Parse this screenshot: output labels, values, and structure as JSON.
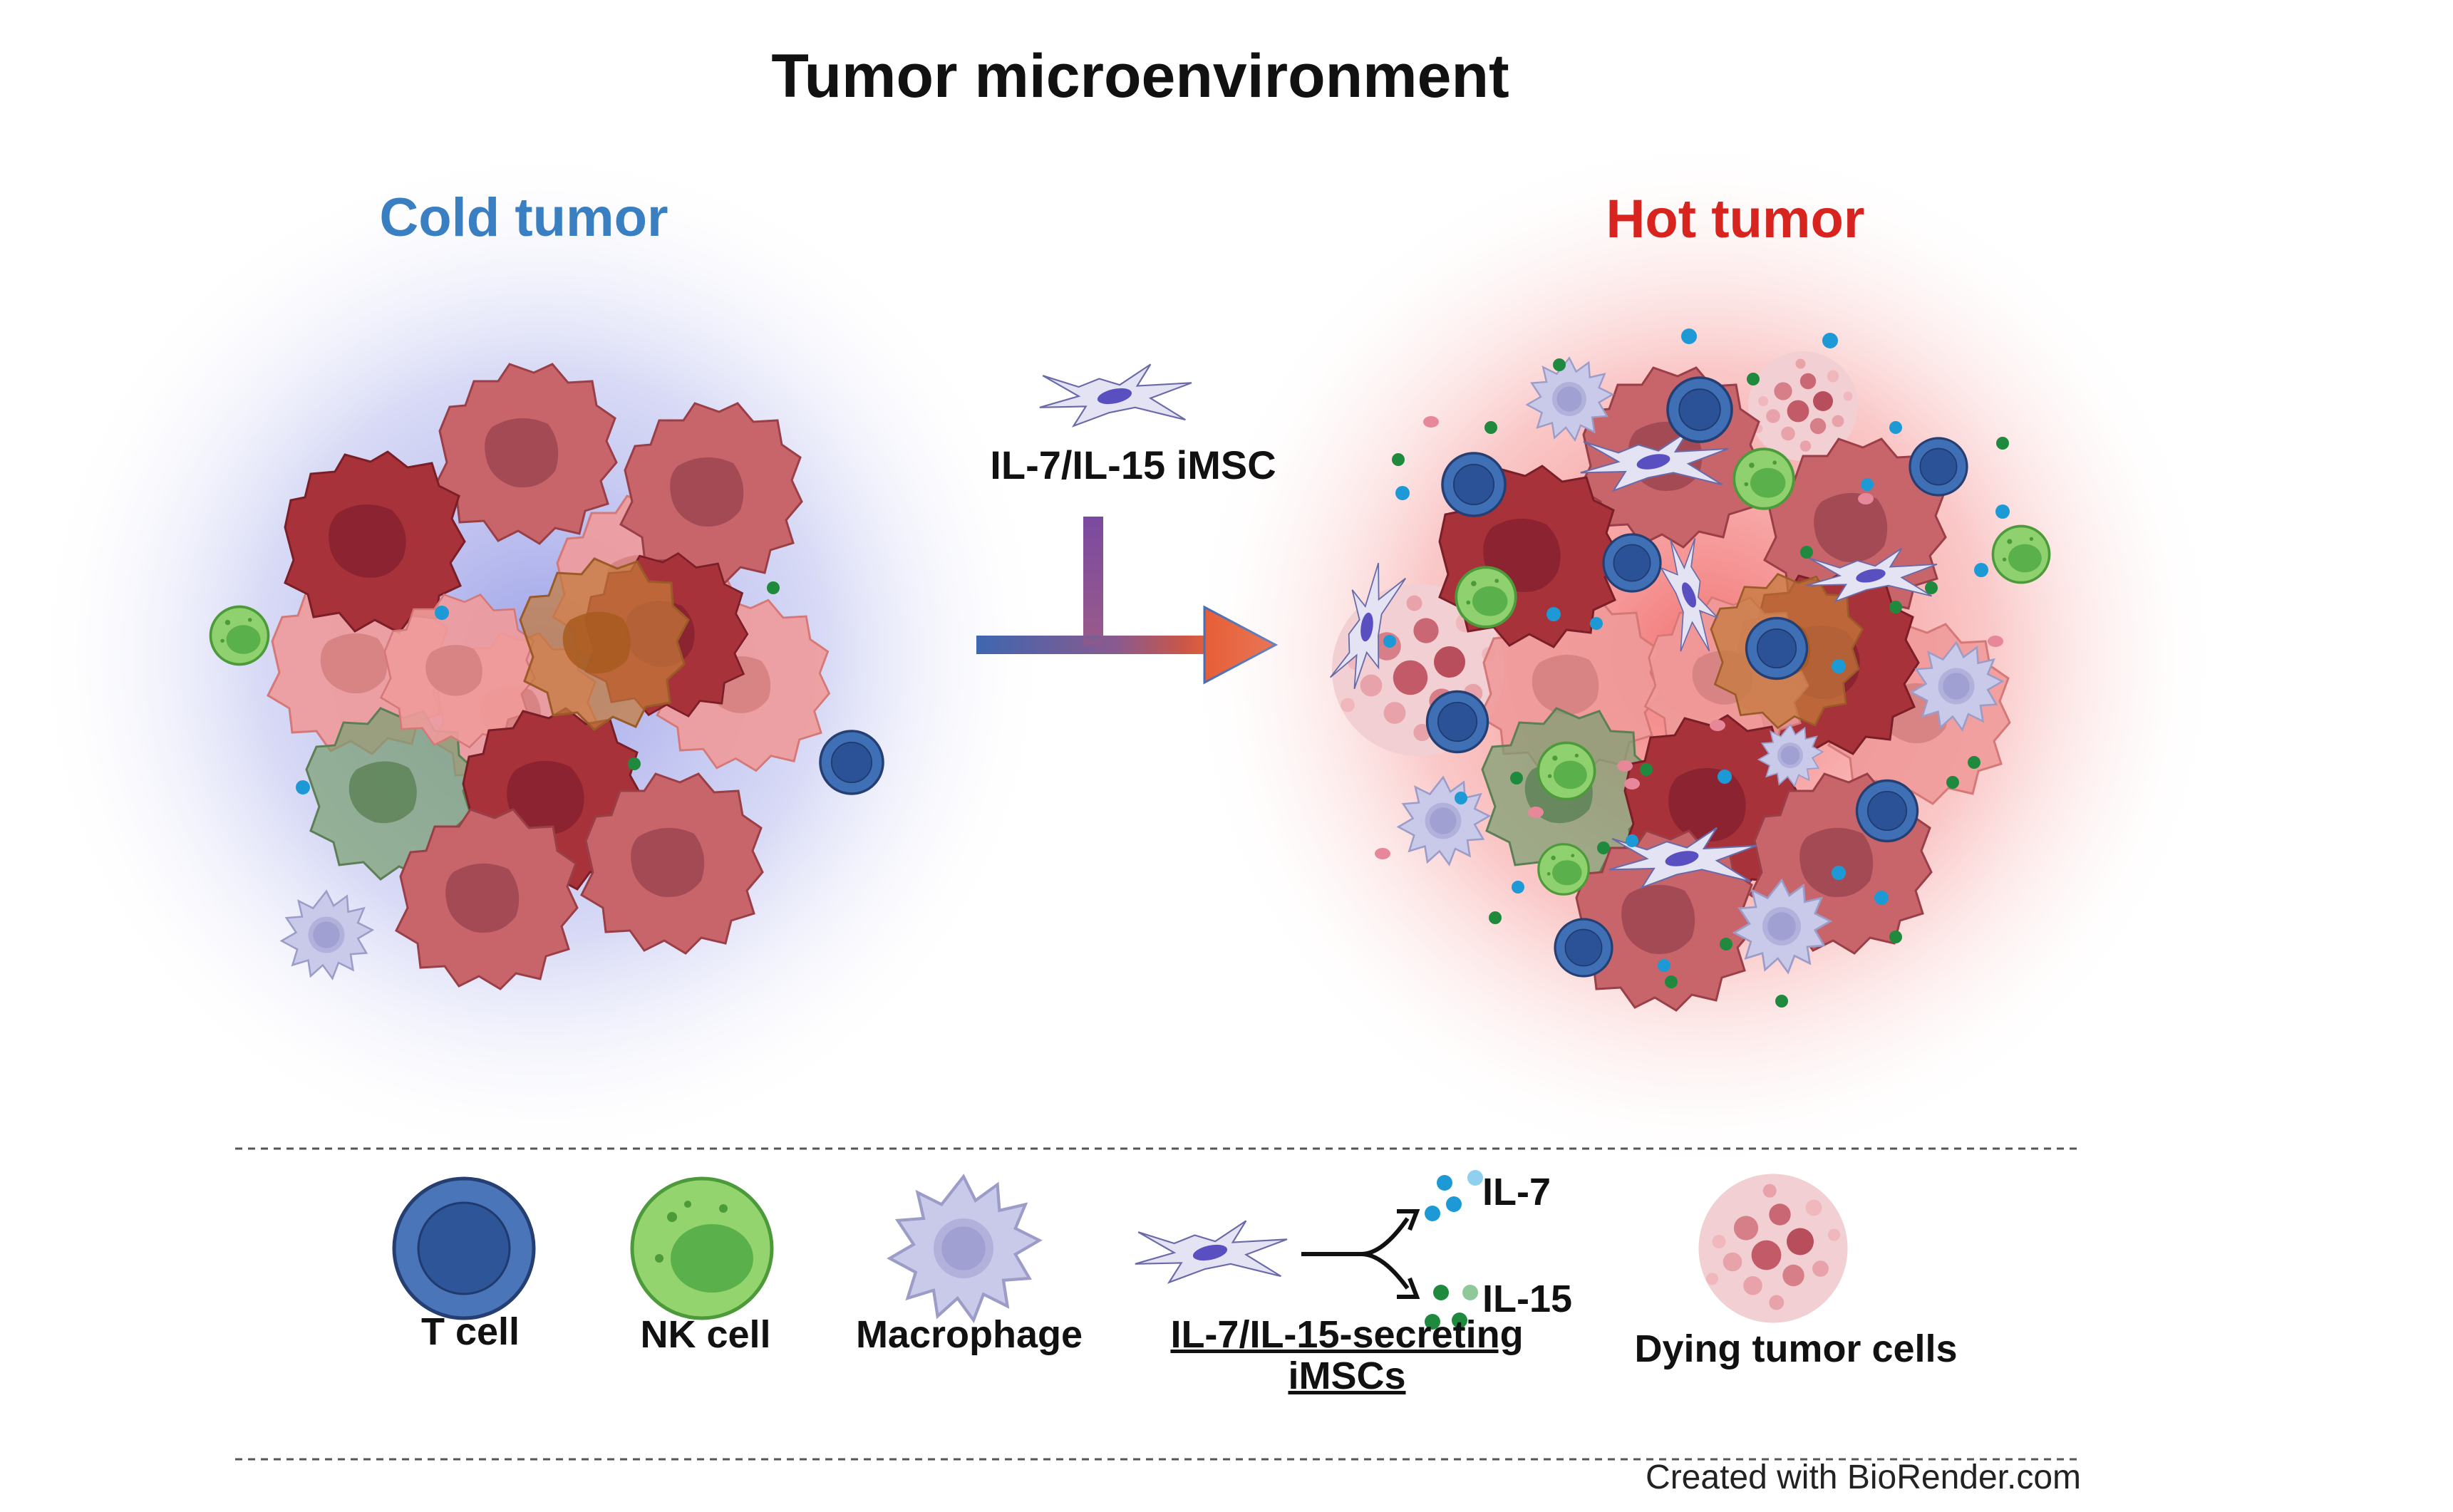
{
  "title": "Tumor microenvironment",
  "panels": {
    "cold": {
      "label": "Cold tumor",
      "color": "#3a7fc1"
    },
    "hot": {
      "label": "Hot tumor",
      "color": "#d8241f"
    }
  },
  "treatment": {
    "label": "IL-7/IL-15 iMSC"
  },
  "legend": {
    "t_cell": "T cell",
    "nk_cell": "NK cell",
    "macrophage": "Macrophage",
    "imsc_line1": "IL-7/IL-15-secreting",
    "imsc_line2": "iMSCs",
    "il7": "IL-7",
    "il15": "IL-15",
    "dying": "Dying tumor cells"
  },
  "credit": "Created with BioRender.com",
  "colors": {
    "t_cell": "#3f6fb5",
    "nk_cell": "#8fd16f",
    "macrophage": "#c9c9ea",
    "tumor_dark": "#a8323a",
    "tumor_mid": "#c7656b",
    "tumor_light": "#ef9a9a",
    "il7_dot": "#1d9ad6",
    "il15_dot": "#1f8a3e",
    "imsc": "#e3e3f4"
  },
  "icons": [
    "t-cell-icon",
    "nk-cell-icon",
    "macrophage-icon",
    "imsc-icon",
    "il7-dots-icon",
    "il15-dots-icon",
    "dying-tumor-cells-icon",
    "treatment-arrow-icon"
  ]
}
